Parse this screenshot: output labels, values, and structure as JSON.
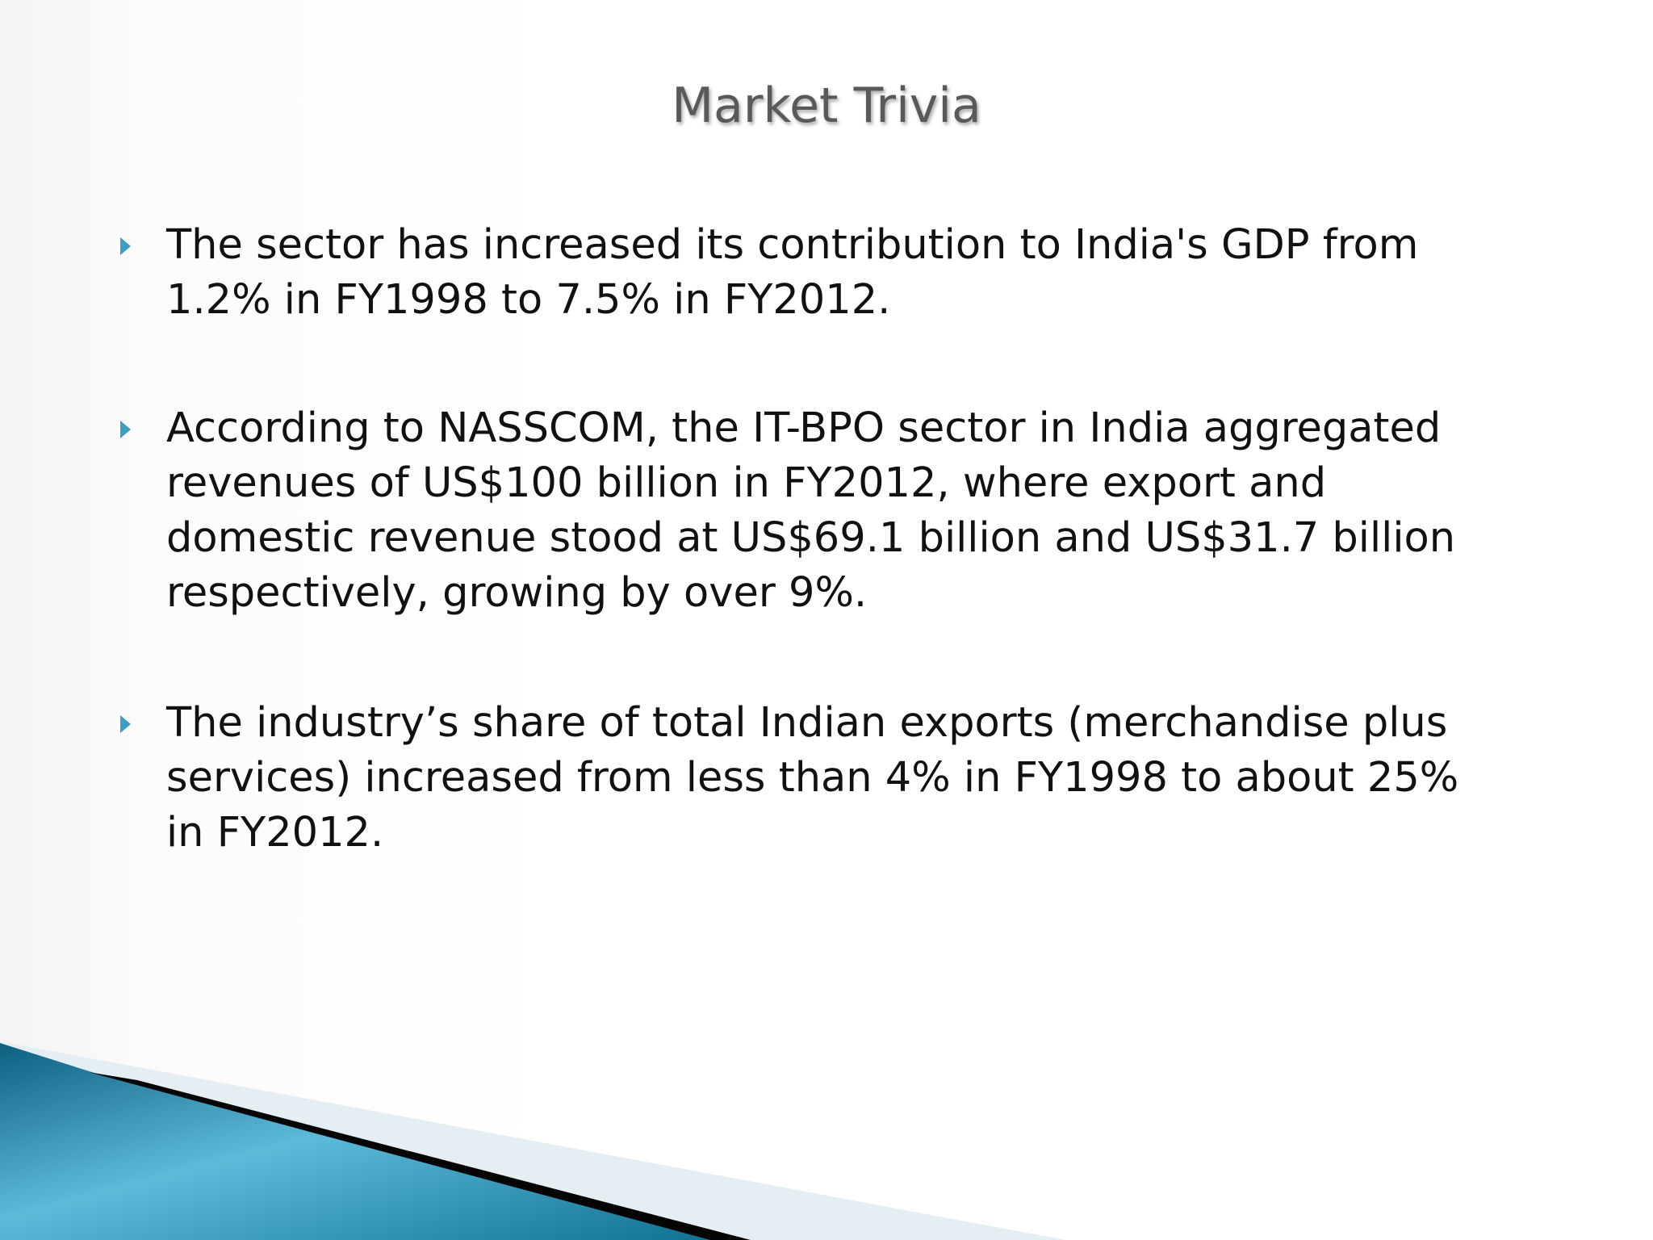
{
  "header": {
    "title": "Market Trivia"
  },
  "bullets": [
    {
      "lines": [
        "The sector has increased its contribution to India's GDP from",
        "1.2% in FY1998 to 7.5% in FY2012."
      ]
    },
    {
      "lines": [
        "According to NASSCOM, the IT-BPO sector in India aggregated",
        "revenues of US$100 billion in FY2012, where export and",
        "domestic revenue stood at US$69.1 billion and US$31.7 billion",
        "respectively, growing by over 9%."
      ]
    },
    {
      "lines": [
        "The industry’s share of total Indian exports (merchandise plus",
        "services) increased from less than 4% in FY1998 to about 25%",
        "in FY2012."
      ]
    }
  ]
}
